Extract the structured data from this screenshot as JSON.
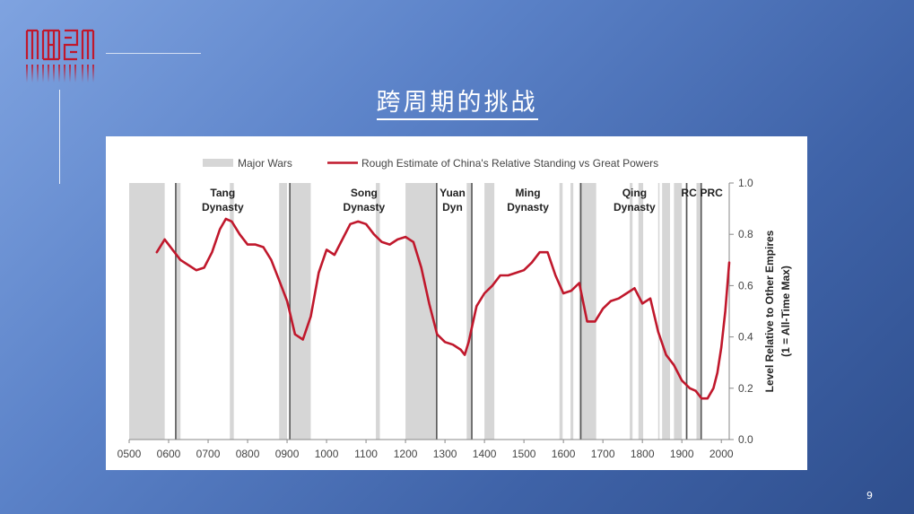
{
  "slide": {
    "title": "跨周期的挑战",
    "page_number": "9"
  },
  "colors": {
    "line": "#c0182c",
    "war_band": "#d6d6d6",
    "logo": "#c0182c"
  },
  "chart_data": {
    "type": "line",
    "title": "",
    "xlabel": "",
    "ylabel": "Level Relative to Other Empires",
    "ylabel2": "(1 = All-Time Max)",
    "y_axis_side": "right",
    "xlim": [
      500,
      2020
    ],
    "ylim": [
      0,
      1.0
    ],
    "x_ticks": [
      "0500",
      "0600",
      "0700",
      "0800",
      "0900",
      "1000",
      "1100",
      "1200",
      "1300",
      "1400",
      "1500",
      "1600",
      "1700",
      "1800",
      "1900",
      "2000"
    ],
    "y_ticks": [
      "0.0",
      "0.2",
      "0.4",
      "0.6",
      "0.8",
      "1.0"
    ],
    "legend": [
      {
        "label": "Major Wars",
        "kind": "band"
      },
      {
        "label": "Rough Estimate of China's Relative Standing vs Great Powers",
        "kind": "line"
      }
    ],
    "dynasties": [
      {
        "name": "Tang",
        "line2": "Dynasty",
        "x": 737
      },
      {
        "name": "Song",
        "line2": "Dynasty",
        "x": 1095
      },
      {
        "name": "Yuan",
        "line2": "Dyn",
        "x": 1319
      },
      {
        "name": "Ming",
        "line2": "Dynasty",
        "x": 1510
      },
      {
        "name": "Qing",
        "line2": "Dynasty",
        "x": 1780
      },
      {
        "name": "RC",
        "line2": "",
        "x": 1918
      },
      {
        "name": "PRC",
        "line2": "",
        "x": 1975
      }
    ],
    "dynasty_boundaries": [
      618,
      907,
      1279,
      1368,
      1644,
      1912,
      1949
    ],
    "war_bands": [
      [
        500,
        590
      ],
      [
        618,
        630
      ],
      [
        755,
        765
      ],
      [
        880,
        900
      ],
      [
        907,
        960
      ],
      [
        1125,
        1135
      ],
      [
        1200,
        1280
      ],
      [
        1355,
        1368
      ],
      [
        1400,
        1425
      ],
      [
        1590,
        1598
      ],
      [
        1618,
        1625
      ],
      [
        1640,
        1683
      ],
      [
        1768,
        1775
      ],
      [
        1790,
        1802
      ],
      [
        1840,
        1842
      ],
      [
        1850,
        1870
      ],
      [
        1880,
        1900
      ],
      [
        1911,
        1915
      ],
      [
        1937,
        1950
      ]
    ],
    "series": [
      {
        "name": "Rough Estimate of China's Relative Standing vs Great Powers",
        "x": [
          570,
          590,
          610,
          630,
          650,
          670,
          690,
          710,
          730,
          745,
          760,
          780,
          800,
          820,
          840,
          860,
          880,
          900,
          920,
          940,
          960,
          980,
          1000,
          1020,
          1040,
          1060,
          1080,
          1100,
          1120,
          1140,
          1160,
          1180,
          1200,
          1220,
          1240,
          1260,
          1280,
          1300,
          1320,
          1340,
          1350,
          1360,
          1380,
          1400,
          1420,
          1440,
          1460,
          1480,
          1500,
          1520,
          1540,
          1560,
          1580,
          1600,
          1620,
          1640,
          1660,
          1680,
          1700,
          1720,
          1740,
          1760,
          1780,
          1800,
          1820,
          1840,
          1860,
          1880,
          1900,
          1920,
          1935,
          1950,
          1965,
          1980,
          1990,
          2000,
          2010,
          2020
        ],
        "y": [
          0.73,
          0.78,
          0.74,
          0.7,
          0.68,
          0.66,
          0.67,
          0.73,
          0.82,
          0.86,
          0.85,
          0.8,
          0.76,
          0.76,
          0.75,
          0.7,
          0.62,
          0.54,
          0.41,
          0.39,
          0.48,
          0.65,
          0.74,
          0.72,
          0.78,
          0.84,
          0.85,
          0.84,
          0.8,
          0.77,
          0.76,
          0.78,
          0.79,
          0.77,
          0.67,
          0.53,
          0.41,
          0.38,
          0.37,
          0.35,
          0.33,
          0.38,
          0.52,
          0.57,
          0.6,
          0.64,
          0.64,
          0.65,
          0.66,
          0.69,
          0.73,
          0.73,
          0.64,
          0.57,
          0.58,
          0.61,
          0.46,
          0.46,
          0.51,
          0.54,
          0.55,
          0.57,
          0.59,
          0.53,
          0.55,
          0.42,
          0.33,
          0.29,
          0.23,
          0.2,
          0.19,
          0.16,
          0.16,
          0.2,
          0.26,
          0.36,
          0.5,
          0.69
        ]
      }
    ],
    "grid": false,
    "legend_position": "top"
  }
}
